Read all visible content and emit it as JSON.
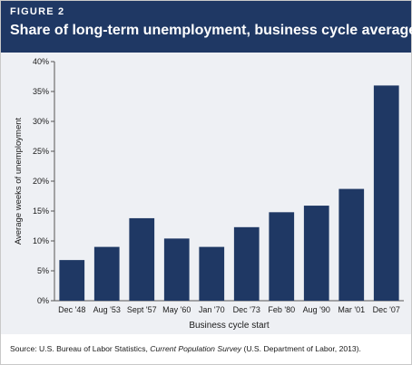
{
  "figure": {
    "label": "FIGURE 2",
    "title": "Share of long-term unemployment, business cycle averages"
  },
  "chart_data": {
    "type": "bar",
    "title": "Share of long-term unemployment, business cycle averages",
    "xlabel": "Business cycle start",
    "ylabel": "Average weeks of unemployment",
    "categories": [
      "Dec '48",
      "Aug '53",
      "Sept '57",
      "May '60",
      "Jan '70",
      "Dec '73",
      "Feb '80",
      "Aug '90",
      "Mar '01",
      "Dec '07"
    ],
    "values": [
      6.8,
      9.0,
      13.8,
      10.4,
      9.0,
      12.3,
      14.8,
      15.9,
      18.7,
      36.0
    ],
    "ylim": [
      0,
      40
    ],
    "yticks": [
      0,
      5,
      10,
      15,
      20,
      25,
      30,
      35,
      40
    ],
    "ytick_labels": [
      "0%",
      "5%",
      "10%",
      "15%",
      "20%",
      "25%",
      "30%",
      "35%",
      "40%"
    ],
    "grid": false,
    "bar_color": "#1f3864"
  },
  "source": {
    "prefix": "Source: U.S. Bureau of Labor Statistics, ",
    "publication": "Current Population Survey",
    "suffix": " (U.S. Department of Labor, 2013)."
  }
}
